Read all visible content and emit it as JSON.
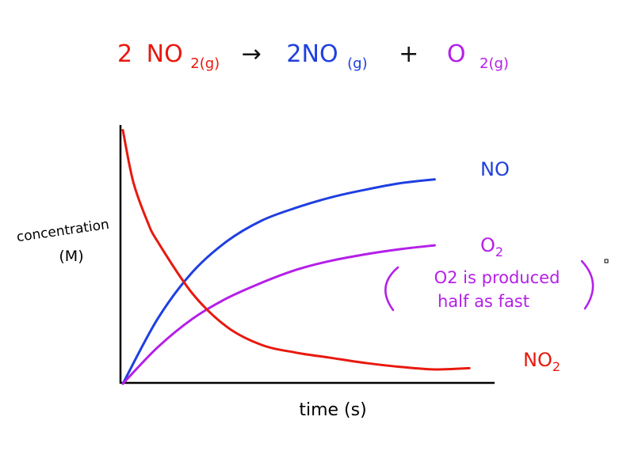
{
  "equation": {
    "reactant_coef": "2",
    "reactant": "NO",
    "reactant_sub": "2(g)",
    "arrow": "→",
    "product1": "2NO",
    "product1_sub": "(g)",
    "plus": "+",
    "product2": "O",
    "product2_sub": "2(g)"
  },
  "chart_data": {
    "type": "line",
    "xlabel": "time (s)",
    "ylabel_line1": "concentration",
    "ylabel_line2": "(M)",
    "xlim": [
      0,
      10
    ],
    "ylim": [
      0,
      10
    ],
    "grid": false,
    "legend": "inline labels at line ends",
    "series": [
      {
        "name": "NO",
        "color": "#1f3fe0",
        "points": [
          [
            0,
            0
          ],
          [
            1,
            2.5
          ],
          [
            2,
            4.3
          ],
          [
            3,
            5.5
          ],
          [
            4,
            6.3
          ],
          [
            5,
            6.8
          ],
          [
            6,
            7.2
          ],
          [
            7,
            7.5
          ],
          [
            8,
            7.75
          ],
          [
            9,
            7.9
          ]
        ]
      },
      {
        "name": "O2",
        "name_text": "O",
        "name_sub": "2",
        "color": "#b41fe8",
        "points": [
          [
            0,
            0
          ],
          [
            1,
            1.4
          ],
          [
            2,
            2.5
          ],
          [
            3,
            3.3
          ],
          [
            4,
            3.9
          ],
          [
            5,
            4.4
          ],
          [
            6,
            4.75
          ],
          [
            7,
            5
          ],
          [
            8,
            5.2
          ],
          [
            9,
            5.35
          ]
        ]
      },
      {
        "name": "NO2",
        "name_text": "NO",
        "name_sub": "2",
        "color": "#e8190f",
        "points": [
          [
            0,
            9.8
          ],
          [
            0.3,
            7.8
          ],
          [
            0.7,
            6.3
          ],
          [
            1,
            5.5
          ],
          [
            2,
            3.5
          ],
          [
            3,
            2.2
          ],
          [
            4,
            1.5
          ],
          [
            5,
            1.2
          ],
          [
            6,
            1
          ],
          [
            7,
            0.8
          ],
          [
            8,
            0.65
          ],
          [
            9,
            0.55
          ],
          [
            10,
            0.6
          ]
        ]
      }
    ],
    "annotation": {
      "line1": "O2 is produced",
      "line2": "half as fast",
      "color": "#b41fe8"
    }
  }
}
